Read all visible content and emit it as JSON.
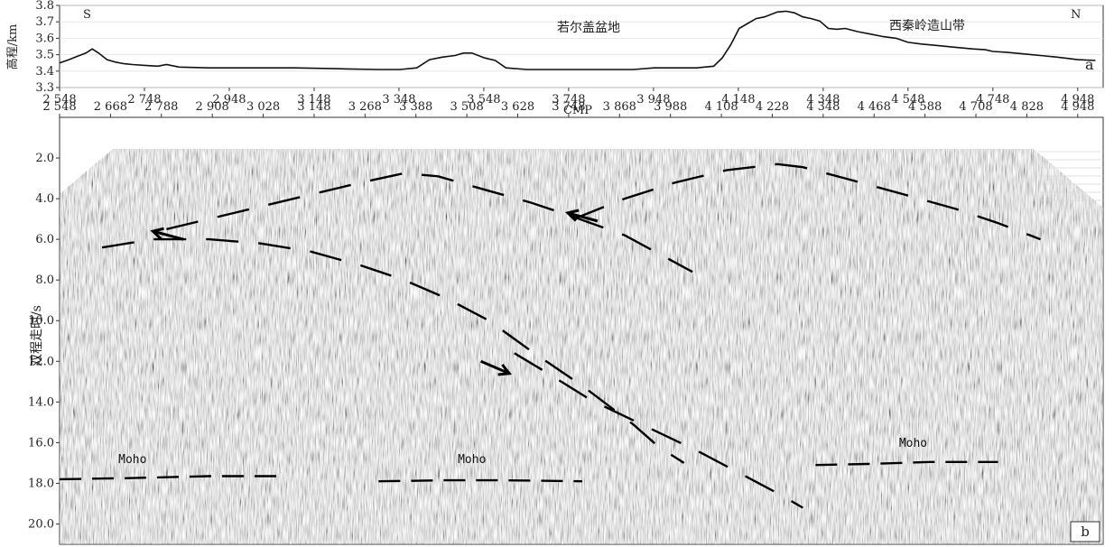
{
  "chart_data": [
    {
      "panel": "a",
      "type": "line",
      "ylabel": "高程/km",
      "xlabel": "CMP",
      "xlim": [
        2548,
        5008
      ],
      "ylim": [
        3.3,
        3.8
      ],
      "xticks": [
        2548,
        2748,
        2948,
        3148,
        3348,
        3548,
        3748,
        3948,
        4148,
        4348,
        4548,
        4748,
        4948
      ],
      "xtick_labels": [
        "2 548",
        "2 748",
        "2 948",
        "3 148",
        "3 348",
        "3 548",
        "3 748",
        "3 948",
        "4 148",
        "4 348",
        "4 548",
        "4 748",
        "4 948"
      ],
      "yticks": [
        3.3,
        3.4,
        3.5,
        3.6,
        3.7,
        3.8
      ],
      "ytick_labels": [
        "3.3",
        "3.4",
        "3.5",
        "3.6",
        "3.7",
        "3.8"
      ],
      "annotations": [
        "S",
        "N",
        "若尔盖盆地",
        "西秦岭造山带"
      ],
      "series": [
        {
          "x": [
            2548,
            2570,
            2590,
            2610,
            2625,
            2640,
            2660,
            2680,
            2700,
            2720,
            2748,
            2780,
            2800,
            2830,
            2900,
            3000,
            3100,
            3200,
            3300,
            3350,
            3390,
            3420,
            3450,
            3480,
            3500,
            3520,
            3550,
            3575,
            3600,
            3650,
            3700,
            3800,
            3900,
            3950,
            4000,
            4050,
            4090,
            4110,
            4130,
            4150,
            4170,
            4190,
            4210,
            4240,
            4260,
            4280,
            4300,
            4320,
            4340,
            4360,
            4380,
            4400,
            4430,
            4460,
            4490,
            4520,
            4548,
            4580,
            4620,
            4660,
            4700,
            4730,
            4748,
            4780,
            4820,
            4860,
            4900,
            4948,
            4990
          ],
          "y": [
            3.45,
            3.47,
            3.49,
            3.51,
            3.535,
            3.51,
            3.47,
            3.455,
            3.445,
            3.44,
            3.435,
            3.43,
            3.44,
            3.425,
            3.42,
            3.42,
            3.42,
            3.415,
            3.41,
            3.41,
            3.42,
            3.47,
            3.485,
            3.495,
            3.51,
            3.51,
            3.48,
            3.465,
            3.42,
            3.41,
            3.41,
            3.41,
            3.41,
            3.42,
            3.42,
            3.42,
            3.43,
            3.48,
            3.56,
            3.66,
            3.69,
            3.72,
            3.73,
            3.76,
            3.765,
            3.755,
            3.73,
            3.72,
            3.705,
            3.66,
            3.655,
            3.66,
            3.64,
            3.625,
            3.61,
            3.6,
            3.575,
            3.565,
            3.555,
            3.545,
            3.535,
            3.53,
            3.52,
            3.515,
            3.505,
            3.495,
            3.485,
            3.47,
            3.465
          ]
        }
      ]
    },
    {
      "panel": "b",
      "type": "line",
      "xlabel": "",
      "ylabel": "双程走时/s",
      "xlim": [
        2548,
        5008
      ],
      "ylim": [
        0.0,
        21.0
      ],
      "y_inverted": true,
      "xticks": [
        2548,
        2668,
        2788,
        2908,
        3028,
        3148,
        3268,
        3388,
        3508,
        3628,
        3748,
        3868,
        3988,
        4108,
        4228,
        4348,
        4468,
        4588,
        4708,
        4828,
        4948
      ],
      "xtick_labels": [
        "2 548",
        "2 668",
        "2 788",
        "2 908",
        "3 028",
        "3 148",
        "3 268",
        "3 388",
        "3 508",
        "3 628",
        "3 748",
        "3 868",
        "3 988",
        "4 108",
        "4 228",
        "4 348",
        "4 468",
        "4 588",
        "4 708",
        "4 828",
        "4 948"
      ],
      "yticks": [
        2.0,
        4.0,
        6.0,
        8.0,
        10.0,
        12.0,
        14.0,
        16.0,
        18.0,
        20.0
      ],
      "ytick_labels": [
        "2.0",
        "4.0",
        "6.0",
        "8.0",
        "10.0",
        "12.0",
        "14.0",
        "16.0",
        "18.0",
        "20.0"
      ],
      "background": "seismic reflection section",
      "annotations": [
        {
          "text": "Moho",
          "x": 2720,
          "y": 17.0
        },
        {
          "text": "Moho",
          "x": 3520,
          "y": 17.0
        },
        {
          "text": "Moho",
          "x": 4560,
          "y": 16.2
        }
      ],
      "arrows": [
        {
          "from": [
            2840,
            6.0
          ],
          "to": [
            2768,
            5.6
          ]
        },
        {
          "from": [
            3816,
            5.1
          ],
          "to": [
            3746,
            4.7
          ]
        },
        {
          "from": [
            3541,
            12.0
          ],
          "to": [
            3608,
            12.6
          ]
        }
      ],
      "lines": [
        {
          "name": "",
          "style": "dashed",
          "x": [
            2648,
            2768,
            2900,
            3020,
            3140,
            3260,
            3360,
            3460,
            3560,
            3660,
            3780,
            3900,
            3960,
            4020
          ],
          "y": [
            6.4,
            6.0,
            6.0,
            6.2,
            6.6,
            7.3,
            8.0,
            8.9,
            10.0,
            11.5,
            13.2,
            15.1,
            16.2,
            17.0
          ]
        },
        {
          "name": "",
          "style": "dashed",
          "x": [
            2800,
            2900,
            3020,
            3140,
            3260,
            3360,
            3440,
            3540,
            3660,
            3760,
            3880,
            4040
          ],
          "y": [
            5.5,
            5.0,
            4.4,
            3.8,
            3.2,
            2.75,
            2.9,
            3.5,
            4.2,
            4.9,
            5.8,
            7.6
          ]
        },
        {
          "name": "",
          "style": "dashed",
          "x": [
            3760,
            3880,
            4000,
            4120,
            4240,
            4300,
            4400,
            4540,
            4660,
            4760,
            4860
          ],
          "y": [
            5.0,
            4.0,
            3.2,
            2.6,
            2.3,
            2.45,
            3.0,
            3.8,
            4.5,
            5.2,
            6.0
          ]
        },
        {
          "name": "",
          "style": "dashed",
          "x": [
            3620,
            3700,
            3800,
            3940,
            4060,
            4160,
            4250,
            4300
          ],
          "y": [
            11.6,
            12.6,
            13.9,
            15.3,
            16.5,
            17.6,
            18.6,
            19.2
          ]
        },
        {
          "name": "",
          "style": "dashed",
          "x": [
            2548,
            2700,
            2900,
            3060
          ],
          "y": [
            17.8,
            17.75,
            17.65,
            17.65
          ]
        },
        {
          "name": "",
          "style": "dashed",
          "x": [
            3300,
            3450,
            3600,
            3780
          ],
          "y": [
            17.9,
            17.85,
            17.85,
            17.9
          ]
        },
        {
          "name": "",
          "style": "dashed",
          "x": [
            4330,
            4450,
            4600,
            4760
          ],
          "y": [
            17.1,
            17.05,
            16.95,
            16.95
          ]
        }
      ]
    }
  ],
  "panel_labels": {
    "a": "a",
    "b": "b"
  }
}
